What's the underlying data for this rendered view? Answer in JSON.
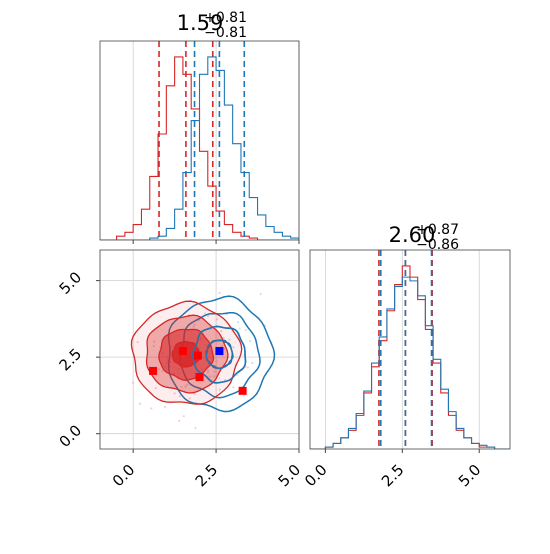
{
  "chart_data": [
    {
      "type": "histogram",
      "panel": "marginal-x",
      "title_main": "1.59",
      "title_sup": "+0.81",
      "title_sub": "−0.81",
      "xlim": [
        -1,
        5
      ],
      "grid": true,
      "series": [
        {
          "name": "",
          "color": "#d62728",
          "x": [
            -1.0,
            -0.75,
            -0.5,
            -0.25,
            0.0,
            0.25,
            0.5,
            0.75,
            1.0,
            1.25,
            1.5,
            1.75,
            2.0,
            2.25,
            2.5,
            2.75,
            3.0,
            3.25,
            3.5,
            3.75,
            4.0,
            4.25,
            4.5,
            4.75,
            5.0
          ],
          "density": [
            0.0,
            0.0,
            0.02,
            0.04,
            0.08,
            0.16,
            0.33,
            0.55,
            0.8,
            0.95,
            0.86,
            0.68,
            0.46,
            0.28,
            0.15,
            0.08,
            0.04,
            0.02,
            0.01,
            0.0,
            0.0,
            0.0,
            0.0,
            0.0,
            0.0
          ],
          "quantiles": [
            0.78,
            1.59,
            2.4
          ]
        },
        {
          "name": "",
          "color": "#1f77b4",
          "x": [
            -1.0,
            -0.75,
            -0.5,
            -0.25,
            0.0,
            0.25,
            0.5,
            0.75,
            1.0,
            1.25,
            1.5,
            1.75,
            2.0,
            2.25,
            2.5,
            2.75,
            3.0,
            3.25,
            3.5,
            3.75,
            4.0,
            4.25,
            4.5,
            4.75,
            5.0
          ],
          "density": [
            0.0,
            0.0,
            0.0,
            0.0,
            0.0,
            0.0,
            0.01,
            0.02,
            0.06,
            0.16,
            0.35,
            0.62,
            0.86,
            0.95,
            0.88,
            0.7,
            0.5,
            0.35,
            0.22,
            0.13,
            0.07,
            0.04,
            0.02,
            0.01,
            0.0
          ],
          "quantiles": [
            1.85,
            2.6,
            3.35
          ]
        }
      ]
    },
    {
      "type": "histogram",
      "panel": "marginal-y",
      "title_main": "2.60",
      "title_sup": "+0.87",
      "title_sub": "−0.86",
      "xlim": [
        -0.5,
        6
      ],
      "xticks": [
        "0.0",
        "2.5",
        "5.0"
      ],
      "grid": true,
      "series": [
        {
          "name": "",
          "color": "#d62728",
          "x": [
            -0.5,
            -0.25,
            0.0,
            0.25,
            0.5,
            0.75,
            1.0,
            1.25,
            1.5,
            1.75,
            2.0,
            2.25,
            2.5,
            2.75,
            3.0,
            3.25,
            3.5,
            3.75,
            4.0,
            4.25,
            4.5,
            4.75,
            5.0,
            5.25,
            5.5,
            5.75,
            6.0
          ],
          "density": [
            0.0,
            0.0,
            0.01,
            0.03,
            0.06,
            0.1,
            0.18,
            0.3,
            0.44,
            0.58,
            0.74,
            0.88,
            0.98,
            0.92,
            0.8,
            0.64,
            0.46,
            0.3,
            0.18,
            0.1,
            0.06,
            0.03,
            0.01,
            0.01,
            0.0,
            0.0,
            0.0
          ],
          "quantiles": [
            1.74,
            2.6,
            3.47
          ]
        },
        {
          "name": "",
          "color": "#1f77b4",
          "x": [
            -0.5,
            -0.25,
            0.0,
            0.25,
            0.5,
            0.75,
            1.0,
            1.25,
            1.5,
            1.75,
            2.0,
            2.25,
            2.5,
            2.75,
            3.0,
            3.25,
            3.5,
            3.75,
            4.0,
            4.25,
            4.5,
            4.75,
            5.0,
            5.25,
            5.5,
            5.75,
            6.0
          ],
          "density": [
            0.0,
            0.0,
            0.01,
            0.03,
            0.06,
            0.11,
            0.19,
            0.31,
            0.46,
            0.6,
            0.75,
            0.87,
            0.92,
            0.9,
            0.82,
            0.66,
            0.48,
            0.32,
            0.2,
            0.11,
            0.06,
            0.03,
            0.02,
            0.01,
            0.0,
            0.0,
            0.0
          ],
          "quantiles": [
            1.8,
            2.6,
            3.45
          ]
        }
      ]
    },
    {
      "type": "contour",
      "panel": "joint",
      "xlim": [
        -1,
        5
      ],
      "ylim": [
        -0.5,
        6
      ],
      "xticks": [
        "0.0",
        "2.5",
        "5.0"
      ],
      "yticks": [
        "0.0",
        "2.5",
        "5.0"
      ],
      "grid": true,
      "series": [
        {
          "name": "",
          "color": "#d62728",
          "filled": true,
          "center": [
            1.59,
            2.6
          ],
          "sigma": [
            0.81,
            0.87
          ],
          "levels": [
            0.5,
            1.0,
            1.5,
            2.0
          ],
          "markers": [
            [
              0.6,
              2.05
            ],
            [
              1.5,
              2.7
            ],
            [
              1.95,
              2.55
            ],
            [
              2.0,
              1.85
            ],
            [
              3.3,
              1.4
            ]
          ]
        },
        {
          "name": "",
          "color": "#1f77b4",
          "filled": false,
          "center": [
            2.6,
            2.6
          ],
          "sigma": [
            0.75,
            0.87
          ],
          "levels": [
            0.5,
            1.0,
            1.5,
            2.0
          ],
          "markers": [
            [
              2.6,
              2.7
            ]
          ]
        }
      ]
    }
  ]
}
